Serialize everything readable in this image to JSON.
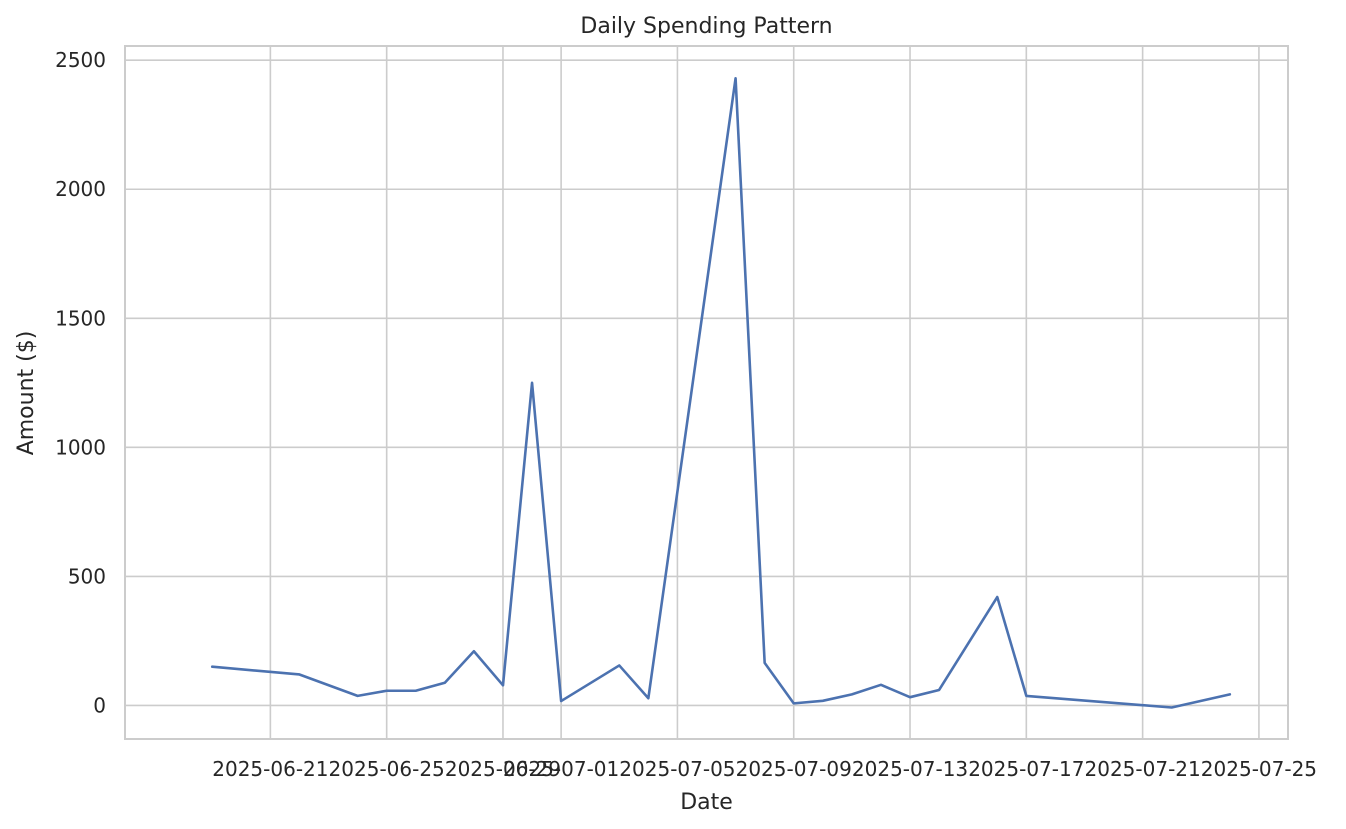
{
  "chart_data": {
    "type": "line",
    "title": "Daily Spending Pattern",
    "xlabel": "Date",
    "ylabel": "Amount ($)",
    "grid": true,
    "legend": "none",
    "xlim": [
      "2025-06-16",
      "2025-07-26"
    ],
    "ylim": [
      -130,
      2555
    ],
    "x_ticks": [
      "2025-06-21",
      "2025-06-25",
      "2025-06-29",
      "2025-07-01",
      "2025-07-05",
      "2025-07-09",
      "2025-07-13",
      "2025-07-17",
      "2025-07-21",
      "2025-07-25"
    ],
    "x_tick_labels": [
      "2025-06-21",
      "2025-06-25",
      "2025-06-29",
      "2025-07-01",
      "2025-07-05",
      "2025-07-09",
      "2025-07-13",
      "2025-07-17",
      "2025-07-21",
      "2025-07-25"
    ],
    "y_ticks": [
      0,
      500,
      1000,
      1500,
      2000,
      2500
    ],
    "y_tick_labels": [
      "0",
      "500",
      "1000",
      "1500",
      "2000",
      "2500"
    ],
    "series": [
      {
        "color": "#4c72b0",
        "x": [
          "2025-06-19",
          "2025-06-22",
          "2025-06-24",
          "2025-06-25",
          "2025-06-26",
          "2025-06-27",
          "2025-06-28",
          "2025-06-29",
          "2025-06-30",
          "2025-07-01",
          "2025-07-03",
          "2025-07-04",
          "2025-07-07",
          "2025-07-08",
          "2025-07-09",
          "2025-07-10",
          "2025-07-11",
          "2025-07-12",
          "2025-07-13",
          "2025-07-14",
          "2025-07-16",
          "2025-07-17",
          "2025-07-22",
          "2025-07-24"
        ],
        "values": [
          150,
          120,
          37,
          57,
          57,
          88,
          210,
          78,
          1250,
          17,
          155,
          28,
          2430,
          165,
          8,
          18,
          43,
          80,
          32,
          60,
          420,
          37,
          -8,
          43
        ]
      }
    ]
  }
}
